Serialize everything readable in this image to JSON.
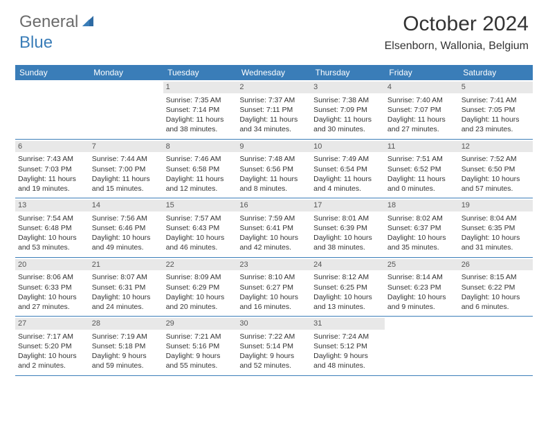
{
  "brand": {
    "part1": "General",
    "part2": "Blue"
  },
  "title": "October 2024",
  "location": "Elsenborn, Wallonia, Belgium",
  "colors": {
    "header_bg": "#3a7db8",
    "daynum_bg": "#e8e8e8",
    "text": "#333333",
    "logo_gray": "#6b6b6b",
    "logo_blue": "#3a7db8"
  },
  "day_labels": [
    "Sunday",
    "Monday",
    "Tuesday",
    "Wednesday",
    "Thursday",
    "Friday",
    "Saturday"
  ],
  "weeks": [
    [
      null,
      null,
      {
        "n": "1",
        "sr": "Sunrise: 7:35 AM",
        "ss": "Sunset: 7:14 PM",
        "dl1": "Daylight: 11 hours",
        "dl2": "and 38 minutes."
      },
      {
        "n": "2",
        "sr": "Sunrise: 7:37 AM",
        "ss": "Sunset: 7:11 PM",
        "dl1": "Daylight: 11 hours",
        "dl2": "and 34 minutes."
      },
      {
        "n": "3",
        "sr": "Sunrise: 7:38 AM",
        "ss": "Sunset: 7:09 PM",
        "dl1": "Daylight: 11 hours",
        "dl2": "and 30 minutes."
      },
      {
        "n": "4",
        "sr": "Sunrise: 7:40 AM",
        "ss": "Sunset: 7:07 PM",
        "dl1": "Daylight: 11 hours",
        "dl2": "and 27 minutes."
      },
      {
        "n": "5",
        "sr": "Sunrise: 7:41 AM",
        "ss": "Sunset: 7:05 PM",
        "dl1": "Daylight: 11 hours",
        "dl2": "and 23 minutes."
      }
    ],
    [
      {
        "n": "6",
        "sr": "Sunrise: 7:43 AM",
        "ss": "Sunset: 7:03 PM",
        "dl1": "Daylight: 11 hours",
        "dl2": "and 19 minutes."
      },
      {
        "n": "7",
        "sr": "Sunrise: 7:44 AM",
        "ss": "Sunset: 7:00 PM",
        "dl1": "Daylight: 11 hours",
        "dl2": "and 15 minutes."
      },
      {
        "n": "8",
        "sr": "Sunrise: 7:46 AM",
        "ss": "Sunset: 6:58 PM",
        "dl1": "Daylight: 11 hours",
        "dl2": "and 12 minutes."
      },
      {
        "n": "9",
        "sr": "Sunrise: 7:48 AM",
        "ss": "Sunset: 6:56 PM",
        "dl1": "Daylight: 11 hours",
        "dl2": "and 8 minutes."
      },
      {
        "n": "10",
        "sr": "Sunrise: 7:49 AM",
        "ss": "Sunset: 6:54 PM",
        "dl1": "Daylight: 11 hours",
        "dl2": "and 4 minutes."
      },
      {
        "n": "11",
        "sr": "Sunrise: 7:51 AM",
        "ss": "Sunset: 6:52 PM",
        "dl1": "Daylight: 11 hours",
        "dl2": "and 0 minutes."
      },
      {
        "n": "12",
        "sr": "Sunrise: 7:52 AM",
        "ss": "Sunset: 6:50 PM",
        "dl1": "Daylight: 10 hours",
        "dl2": "and 57 minutes."
      }
    ],
    [
      {
        "n": "13",
        "sr": "Sunrise: 7:54 AM",
        "ss": "Sunset: 6:48 PM",
        "dl1": "Daylight: 10 hours",
        "dl2": "and 53 minutes."
      },
      {
        "n": "14",
        "sr": "Sunrise: 7:56 AM",
        "ss": "Sunset: 6:46 PM",
        "dl1": "Daylight: 10 hours",
        "dl2": "and 49 minutes."
      },
      {
        "n": "15",
        "sr": "Sunrise: 7:57 AM",
        "ss": "Sunset: 6:43 PM",
        "dl1": "Daylight: 10 hours",
        "dl2": "and 46 minutes."
      },
      {
        "n": "16",
        "sr": "Sunrise: 7:59 AM",
        "ss": "Sunset: 6:41 PM",
        "dl1": "Daylight: 10 hours",
        "dl2": "and 42 minutes."
      },
      {
        "n": "17",
        "sr": "Sunrise: 8:01 AM",
        "ss": "Sunset: 6:39 PM",
        "dl1": "Daylight: 10 hours",
        "dl2": "and 38 minutes."
      },
      {
        "n": "18",
        "sr": "Sunrise: 8:02 AM",
        "ss": "Sunset: 6:37 PM",
        "dl1": "Daylight: 10 hours",
        "dl2": "and 35 minutes."
      },
      {
        "n": "19",
        "sr": "Sunrise: 8:04 AM",
        "ss": "Sunset: 6:35 PM",
        "dl1": "Daylight: 10 hours",
        "dl2": "and 31 minutes."
      }
    ],
    [
      {
        "n": "20",
        "sr": "Sunrise: 8:06 AM",
        "ss": "Sunset: 6:33 PM",
        "dl1": "Daylight: 10 hours",
        "dl2": "and 27 minutes."
      },
      {
        "n": "21",
        "sr": "Sunrise: 8:07 AM",
        "ss": "Sunset: 6:31 PM",
        "dl1": "Daylight: 10 hours",
        "dl2": "and 24 minutes."
      },
      {
        "n": "22",
        "sr": "Sunrise: 8:09 AM",
        "ss": "Sunset: 6:29 PM",
        "dl1": "Daylight: 10 hours",
        "dl2": "and 20 minutes."
      },
      {
        "n": "23",
        "sr": "Sunrise: 8:10 AM",
        "ss": "Sunset: 6:27 PM",
        "dl1": "Daylight: 10 hours",
        "dl2": "and 16 minutes."
      },
      {
        "n": "24",
        "sr": "Sunrise: 8:12 AM",
        "ss": "Sunset: 6:25 PM",
        "dl1": "Daylight: 10 hours",
        "dl2": "and 13 minutes."
      },
      {
        "n": "25",
        "sr": "Sunrise: 8:14 AM",
        "ss": "Sunset: 6:23 PM",
        "dl1": "Daylight: 10 hours",
        "dl2": "and 9 minutes."
      },
      {
        "n": "26",
        "sr": "Sunrise: 8:15 AM",
        "ss": "Sunset: 6:22 PM",
        "dl1": "Daylight: 10 hours",
        "dl2": "and 6 minutes."
      }
    ],
    [
      {
        "n": "27",
        "sr": "Sunrise: 7:17 AM",
        "ss": "Sunset: 5:20 PM",
        "dl1": "Daylight: 10 hours",
        "dl2": "and 2 minutes."
      },
      {
        "n": "28",
        "sr": "Sunrise: 7:19 AM",
        "ss": "Sunset: 5:18 PM",
        "dl1": "Daylight: 9 hours",
        "dl2": "and 59 minutes."
      },
      {
        "n": "29",
        "sr": "Sunrise: 7:21 AM",
        "ss": "Sunset: 5:16 PM",
        "dl1": "Daylight: 9 hours",
        "dl2": "and 55 minutes."
      },
      {
        "n": "30",
        "sr": "Sunrise: 7:22 AM",
        "ss": "Sunset: 5:14 PM",
        "dl1": "Daylight: 9 hours",
        "dl2": "and 52 minutes."
      },
      {
        "n": "31",
        "sr": "Sunrise: 7:24 AM",
        "ss": "Sunset: 5:12 PM",
        "dl1": "Daylight: 9 hours",
        "dl2": "and 48 minutes."
      },
      null,
      null
    ]
  ]
}
